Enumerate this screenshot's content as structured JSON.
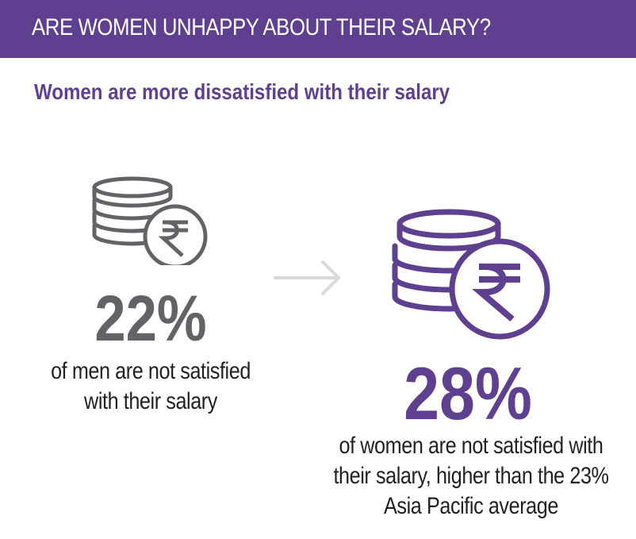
{
  "header": {
    "title": "ARE WOMEN UNHAPPY ABOUT THEIR SALARY?"
  },
  "subtitle": "Women are more dissatisfied with their salary",
  "men": {
    "icon": "rupee-coin-stack-icon",
    "stat": "22%",
    "caption_lines": [
      "of men are not satisfied",
      "with their salary"
    ]
  },
  "women": {
    "icon": "rupee-coin-stack-icon",
    "stat": "28%",
    "caption_lines": [
      "of women are not satisfied with",
      "their salary, higher than the 23%",
      "Asia Pacific average"
    ]
  },
  "arrow": {
    "icon": "arrow-right-icon"
  },
  "colors": {
    "brand_purple": "#5f3f8f",
    "men_gray": "#626366",
    "arrow_gray": "#d9d9d9",
    "text": "#231f20"
  }
}
